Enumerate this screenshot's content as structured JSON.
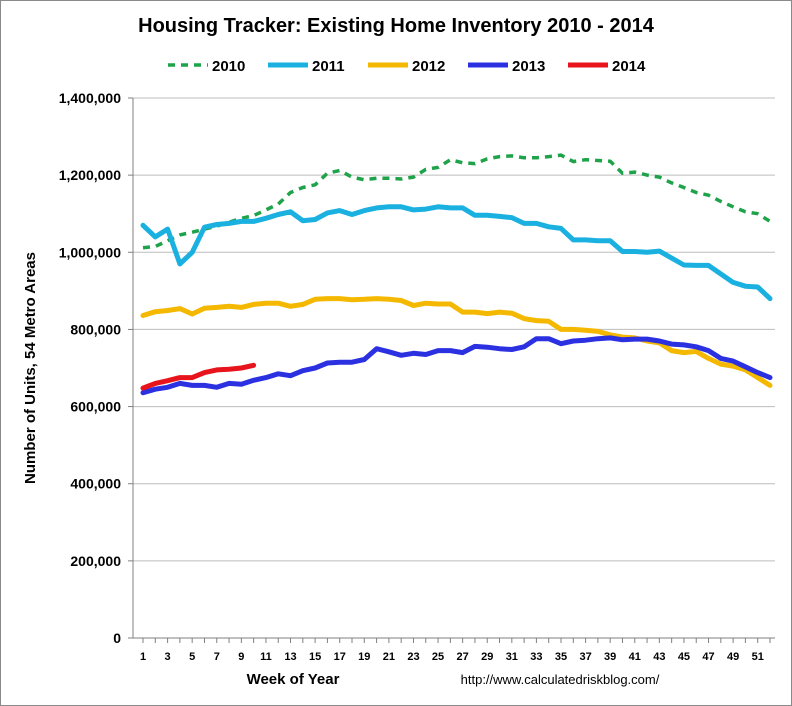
{
  "chart_data": {
    "type": "line",
    "title": "Housing Tracker: Existing Home Inventory 2010 - 2014",
    "xlabel": "Week of Year",
    "ylabel": "Number of Units, 54 Metro Areas",
    "source": "http://www.calculatedriskblog.com/",
    "xlim": [
      1,
      52
    ],
    "ylim": [
      0,
      1400000
    ],
    "yticks": [
      "0",
      "200,000",
      "400,000",
      "600,000",
      "800,000",
      "1,000,000",
      "1,200,000",
      "1,400,000"
    ],
    "ytick_values": [
      0,
      200000,
      400000,
      600000,
      800000,
      1000000,
      1200000,
      1400000
    ],
    "xticks": [
      "1",
      "3",
      "5",
      "7",
      "9",
      "11",
      "13",
      "15",
      "17",
      "19",
      "21",
      "23",
      "25",
      "27",
      "29",
      "31",
      "33",
      "35",
      "37",
      "39",
      "41",
      "43",
      "45",
      "47",
      "49",
      "51"
    ],
    "xtick_values": [
      1,
      3,
      5,
      7,
      9,
      11,
      13,
      15,
      17,
      19,
      21,
      23,
      25,
      27,
      29,
      31,
      33,
      35,
      37,
      39,
      41,
      43,
      45,
      47,
      49,
      51
    ],
    "grid": "horizontal",
    "legend_position": "top",
    "series": [
      {
        "name": "2010",
        "color": "#1fa34a",
        "dash": "dashed",
        "x": [
          1,
          2,
          3,
          4,
          5,
          6,
          7,
          8,
          9,
          10,
          11,
          12,
          13,
          14,
          15,
          16,
          17,
          18,
          19,
          20,
          21,
          22,
          23,
          24,
          25,
          26,
          27,
          28,
          29,
          30,
          31,
          32,
          33,
          34,
          35,
          36,
          37,
          38,
          39,
          40,
          41,
          42,
          43,
          44,
          45,
          46,
          47,
          48,
          49,
          50,
          51,
          52
        ],
        "values": [
          1012000,
          1015000,
          1030000,
          1045000,
          1052000,
          1060000,
          1068000,
          1078000,
          1088000,
          1095000,
          1110000,
          1125000,
          1155000,
          1168000,
          1175000,
          1205000,
          1212000,
          1195000,
          1188000,
          1192000,
          1192000,
          1190000,
          1195000,
          1215000,
          1220000,
          1240000,
          1232000,
          1230000,
          1242000,
          1248000,
          1250000,
          1245000,
          1245000,
          1248000,
          1252000,
          1235000,
          1240000,
          1238000,
          1236000,
          1205000,
          1208000,
          1200000,
          1195000,
          1180000,
          1168000,
          1155000,
          1148000,
          1132000,
          1118000,
          1105000,
          1100000,
          1080000
        ]
      },
      {
        "name": "2011",
        "color": "#1ab0e0",
        "dash": "solid",
        "x": [
          1,
          2,
          3,
          4,
          5,
          6,
          7,
          8,
          9,
          10,
          11,
          12,
          13,
          14,
          15,
          16,
          17,
          18,
          19,
          20,
          21,
          22,
          23,
          24,
          25,
          26,
          27,
          28,
          29,
          30,
          31,
          32,
          33,
          34,
          35,
          36,
          37,
          38,
          39,
          40,
          41,
          42,
          43,
          44,
          45,
          46,
          47,
          48,
          49,
          50,
          51,
          52
        ],
        "values": [
          1070000,
          1040000,
          1060000,
          970000,
          1000000,
          1065000,
          1072000,
          1075000,
          1080000,
          1080000,
          1088000,
          1098000,
          1105000,
          1082000,
          1085000,
          1102000,
          1108000,
          1098000,
          1108000,
          1115000,
          1118000,
          1118000,
          1110000,
          1112000,
          1118000,
          1115000,
          1115000,
          1096000,
          1096000,
          1093000,
          1090000,
          1075000,
          1075000,
          1066000,
          1062000,
          1032000,
          1032000,
          1030000,
          1030000,
          1002000,
          1002000,
          1000000,
          1003000,
          985000,
          967000,
          966000,
          966000,
          944000,
          922000,
          912000,
          910000,
          880000
        ]
      },
      {
        "name": "2012",
        "color": "#f5b800",
        "dash": "solid",
        "x": [
          1,
          2,
          3,
          4,
          5,
          6,
          7,
          8,
          9,
          10,
          11,
          12,
          13,
          14,
          15,
          16,
          17,
          18,
          19,
          20,
          21,
          22,
          23,
          24,
          25,
          26,
          27,
          28,
          29,
          30,
          31,
          32,
          33,
          34,
          35,
          36,
          37,
          38,
          39,
          40,
          41,
          42,
          43,
          44,
          45,
          46,
          47,
          48,
          49,
          50,
          51,
          52
        ],
        "values": [
          836000,
          846000,
          849000,
          854000,
          840000,
          855000,
          857000,
          860000,
          857000,
          865000,
          868000,
          868000,
          860000,
          865000,
          878000,
          880000,
          880000,
          877000,
          878000,
          880000,
          878000,
          875000,
          862000,
          868000,
          866000,
          866000,
          845000,
          845000,
          841000,
          845000,
          842000,
          828000,
          823000,
          821000,
          800000,
          800000,
          798000,
          795000,
          786000,
          780000,
          778000,
          770000,
          765000,
          745000,
          740000,
          743000,
          725000,
          710000,
          705000,
          695000,
          675000,
          655000
        ]
      },
      {
        "name": "2013",
        "color": "#2b30e0",
        "dash": "solid",
        "x": [
          1,
          2,
          3,
          4,
          5,
          6,
          7,
          8,
          9,
          10,
          11,
          12,
          13,
          14,
          15,
          16,
          17,
          18,
          19,
          20,
          21,
          22,
          23,
          24,
          25,
          26,
          27,
          28,
          29,
          30,
          31,
          32,
          33,
          34,
          35,
          36,
          37,
          38,
          39,
          40,
          41,
          42,
          43,
          44,
          45,
          46,
          47,
          48,
          49,
          50,
          51,
          52
        ],
        "values": [
          636000,
          645000,
          650000,
          660000,
          655000,
          655000,
          650000,
          660000,
          658000,
          668000,
          675000,
          685000,
          680000,
          693000,
          700000,
          713000,
          715000,
          715000,
          722000,
          750000,
          742000,
          733000,
          738000,
          735000,
          745000,
          745000,
          740000,
          756000,
          754000,
          750000,
          748000,
          755000,
          776000,
          776000,
          763000,
          770000,
          772000,
          776000,
          778000,
          773000,
          775000,
          775000,
          770000,
          762000,
          760000,
          755000,
          745000,
          725000,
          718000,
          703000,
          688000,
          675000
        ]
      },
      {
        "name": "2014",
        "color": "#e8141b",
        "dash": "solid",
        "x": [
          1,
          2,
          3,
          4,
          5,
          6,
          7,
          8,
          9,
          10
        ],
        "values": [
          648000,
          660000,
          667000,
          675000,
          675000,
          688000,
          695000,
          697000,
          700000,
          707000
        ]
      }
    ]
  }
}
